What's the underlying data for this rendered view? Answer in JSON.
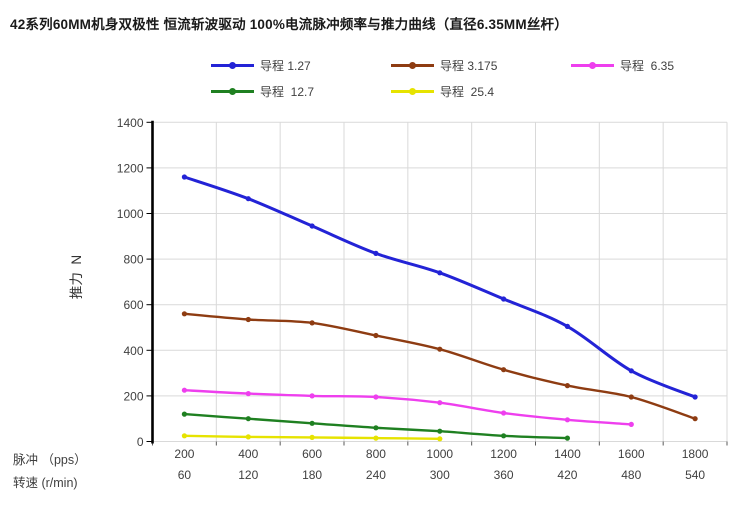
{
  "chart_data": {
    "type": "line",
    "title": "42系列60MM机身双极性 恒流斩波驱动 100%电流脉冲频率与推力曲线（直径6.35MM丝杆）",
    "ylabel": "推力  N",
    "y_axis": {
      "min": 0,
      "max": 1400,
      "step": 200,
      "ticks": [
        0,
        200,
        400,
        600,
        800,
        1000,
        1200,
        1400
      ]
    },
    "x_axis": {
      "label_pps": "脉冲 （pps）",
      "label_rpm": "转速 (r/min)",
      "pps": [
        200,
        400,
        600,
        800,
        1000,
        1200,
        1400,
        1600,
        1800
      ],
      "rpm": [
        60,
        120,
        180,
        240,
        300,
        360,
        420,
        480,
        540
      ]
    },
    "grid": true,
    "legend_position": "top",
    "series": [
      {
        "name": "导程 1.27",
        "color": "#2323d6",
        "values": [
          1160,
          1065,
          945,
          825,
          740,
          625,
          505,
          310,
          195
        ]
      },
      {
        "name": "导程 3.175",
        "color": "#8e3c12",
        "values": [
          560,
          535,
          520,
          465,
          405,
          315,
          245,
          195,
          100
        ]
      },
      {
        "name": "导程  6.35",
        "color": "#ee3fee",
        "values": [
          225,
          210,
          200,
          195,
          170,
          125,
          95,
          75
        ]
      },
      {
        "name": "导程  12.7",
        "color": "#1f8021",
        "values": [
          120,
          100,
          80,
          60,
          45,
          25,
          15
        ]
      },
      {
        "name": "导程  25.4",
        "color": "#e6e300",
        "values": [
          25,
          20,
          18,
          15,
          12
        ]
      }
    ],
    "colors": {
      "grid": "#d9d9d9",
      "axis": "#000000",
      "x_tick": "#595959",
      "tick_text": "#404040"
    }
  }
}
